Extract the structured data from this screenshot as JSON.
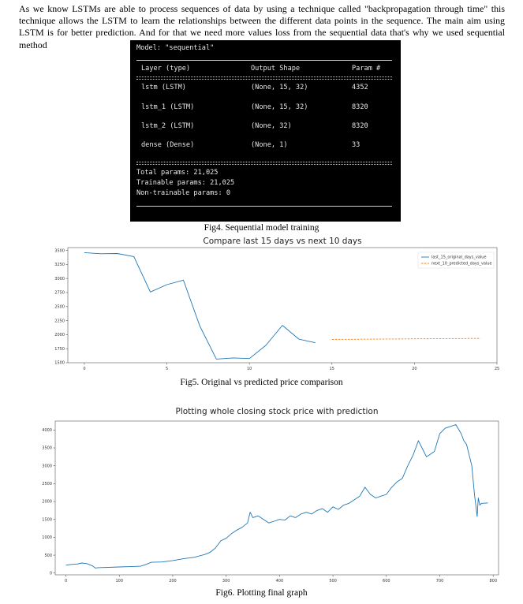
{
  "paragraph": "As we know LSTMs are able to process sequences of data by using a technique called \"backpropagation through time\" this technique allows the LSTM to learn the relationships between the different data points in the sequence. The main aim using LSTM is for better prediction. And for that we need more values loss from the sequential data that's why we used sequential method",
  "model_summary": {
    "model_line": "Model: \"sequential\"",
    "headers": [
      "Layer (type)",
      "Output Shape",
      "Param #"
    ],
    "rows": [
      {
        "layer": "lstm (LSTM)",
        "shape": "(None, 15, 32)",
        "params": "4352"
      },
      {
        "layer": "lstm_1 (LSTM)",
        "shape": "(None, 15, 32)",
        "params": "8320"
      },
      {
        "layer": "lstm_2 (LSTM)",
        "shape": "(None, 32)",
        "params": "8320"
      },
      {
        "layer": "dense (Dense)",
        "shape": "(None, 1)",
        "params": "33"
      }
    ],
    "total": "Total params: 21,025",
    "trainable": "Trainable params: 21,025",
    "non_trainable": "Non-trainable params: 0"
  },
  "captions": {
    "fig4": "Fig4. Sequential model training",
    "fig5": "Fig5. Original vs predicted price comparison",
    "fig6": "Fig6. Plotting final graph"
  },
  "chart_data": [
    {
      "type": "line",
      "title": "Compare last 15 days vs next 10 days",
      "xlabel": "",
      "ylabel": "",
      "xlim": [
        -1,
        25
      ],
      "ylim": [
        1500,
        3550
      ],
      "xticks": [
        0,
        5,
        10,
        15,
        20,
        25
      ],
      "yticks": [
        1500,
        1750,
        2000,
        2250,
        2500,
        2750,
        3000,
        3250,
        3500
      ],
      "legend_position": "top-right",
      "series": [
        {
          "name": "last_15_original_days_value",
          "color": "#1f77b4",
          "style": "solid",
          "x": [
            0,
            1,
            2,
            3,
            4,
            5,
            6,
            7,
            8,
            9,
            10,
            11,
            12,
            13,
            14
          ],
          "y": [
            3460,
            3440,
            3445,
            3390,
            2760,
            2890,
            2970,
            2150,
            1565,
            1585,
            1575,
            1810,
            2165,
            1920,
            1855
          ]
        },
        {
          "name": "next_10_predicted_days_value",
          "color": "#ff7f0e",
          "style": "dashed",
          "x": [
            15,
            16,
            17,
            18,
            19,
            20,
            21,
            22,
            23,
            24
          ],
          "y": [
            1915,
            1917,
            1919,
            1921,
            1923,
            1925,
            1927,
            1929,
            1931,
            1934
          ]
        }
      ]
    },
    {
      "type": "line",
      "title": "Plotting whole closing stock price with prediction",
      "xlabel": "",
      "ylabel": "",
      "xlim": [
        -20,
        810
      ],
      "ylim": [
        -50,
        4250
      ],
      "xticks": [
        0,
        100,
        200,
        300,
        400,
        500,
        600,
        700,
        800
      ],
      "yticks": [
        0,
        500,
        1000,
        1500,
        2000,
        2500,
        3000,
        3500,
        4000
      ],
      "series": [
        {
          "name": "",
          "color": "#1f77b4",
          "x": [
            0,
            10,
            20,
            30,
            40,
            50,
            55,
            60,
            80,
            100,
            120,
            140,
            150,
            160,
            180,
            200,
            220,
            240,
            260,
            270,
            280,
            290,
            300,
            310,
            320,
            330,
            340,
            345,
            350,
            360,
            370,
            380,
            390,
            400,
            410,
            420,
            430,
            440,
            450,
            460,
            470,
            480,
            490,
            500,
            510,
            520,
            530,
            540,
            550,
            560,
            570,
            580,
            590,
            600,
            610,
            620,
            630,
            640,
            650,
            660,
            670,
            675,
            680,
            690,
            700,
            710,
            720,
            730,
            740,
            745,
            750,
            760,
            765,
            770,
            772,
            775,
            778,
            780,
            790
          ],
          "y": [
            220,
            240,
            250,
            280,
            260,
            200,
            140,
            150,
            160,
            170,
            180,
            190,
            240,
            300,
            310,
            350,
            400,
            440,
            520,
            580,
            700,
            900,
            970,
            1100,
            1200,
            1280,
            1400,
            1700,
            1550,
            1600,
            1500,
            1400,
            1450,
            1500,
            1480,
            1600,
            1550,
            1650,
            1700,
            1650,
            1750,
            1800,
            1700,
            1850,
            1780,
            1900,
            1950,
            2050,
            2150,
            2400,
            2200,
            2100,
            2150,
            2200,
            2400,
            2550,
            2650,
            3000,
            3300,
            3700,
            3400,
            3250,
            3300,
            3400,
            3900,
            4050,
            4100,
            4150,
            3900,
            3700,
            3600,
            3000,
            2200,
            1580,
            2100,
            1900,
            1950,
            1950,
            1960
          ]
        }
      ]
    }
  ]
}
